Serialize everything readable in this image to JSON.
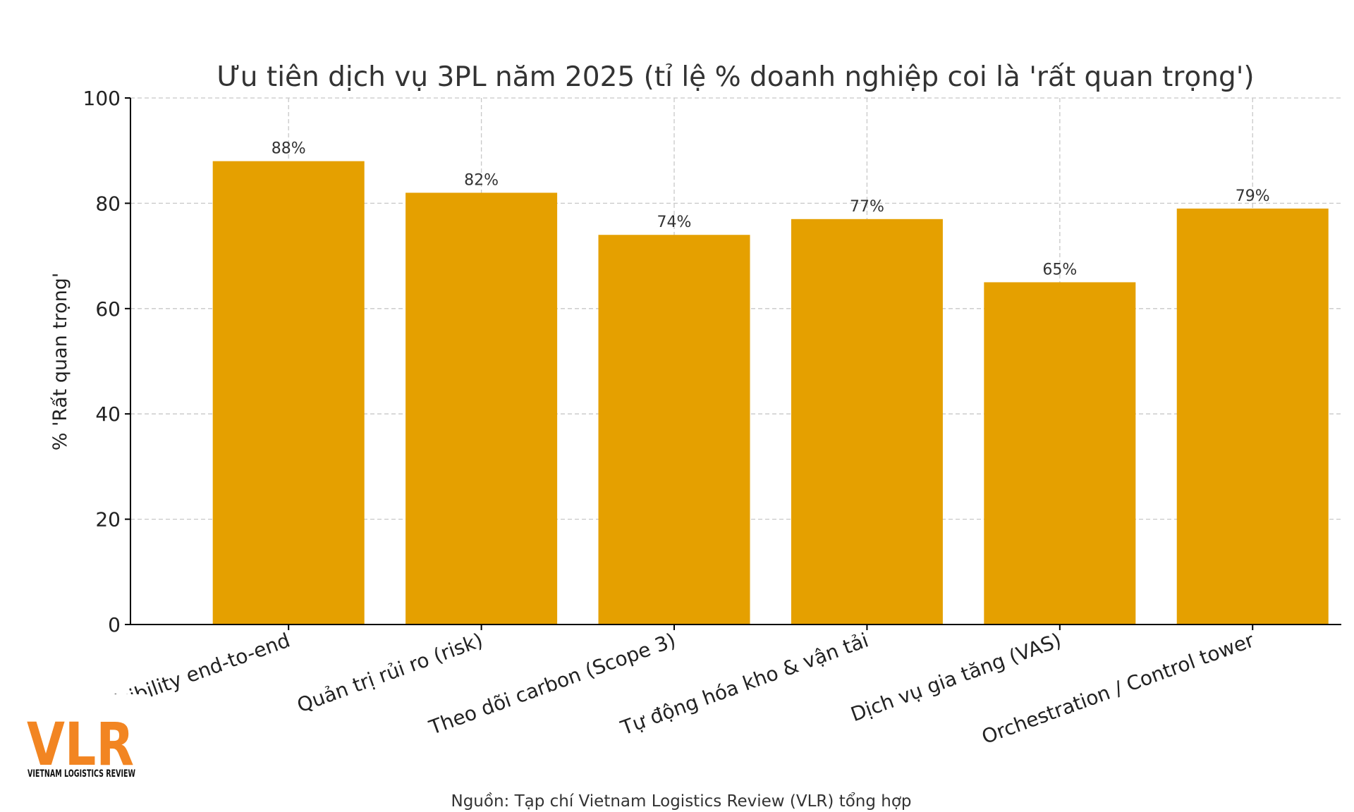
{
  "chart_data": {
    "type": "bar",
    "title": "Ưu tiên dịch vụ 3PL năm 2025 (tỉ lệ % doanh nghiệp coi là 'rất quan trọng')",
    "xlabel": "",
    "ylabel": "% 'Rất quan trọng'",
    "ylim": [
      0,
      100
    ],
    "yticks": [
      0,
      20,
      40,
      60,
      80,
      100
    ],
    "grid": true,
    "categories": [
      "Visibility end-to-end",
      "Quản trị rủi ro (risk)",
      "Theo dõi carbon (Scope 3)",
      "Tự động hóa kho & vận tải",
      "Dịch vụ gia tăng (VAS)",
      "Orchestration / Control tower"
    ],
    "values": [
      88,
      82,
      74,
      77,
      65,
      79
    ],
    "data_labels": [
      "88%",
      "82%",
      "74%",
      "77%",
      "65%",
      "79%"
    ],
    "bar_color": "#E5A000"
  },
  "source": "Nguồn: Tạp chí Vietnam Logistics Review (VLR) tổng hợp",
  "logo": {
    "mark": "VLR",
    "subtitle": "VIETNAM LOGISTICS REVIEW",
    "color": "#F28522"
  }
}
